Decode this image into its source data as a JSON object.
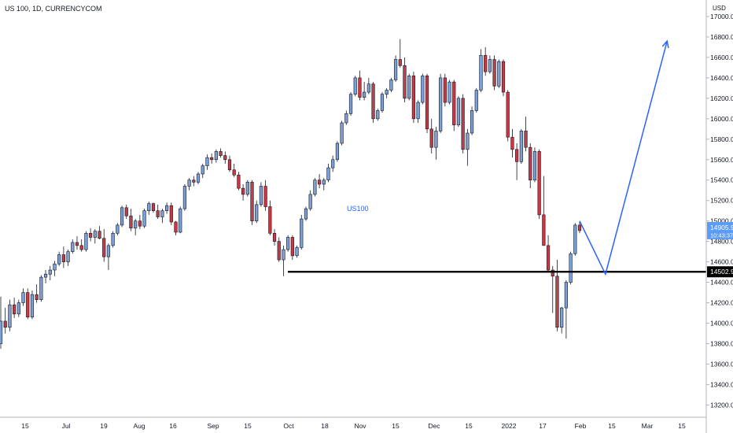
{
  "header": {
    "symbol": "US 100, 1D, CURRENCYCOM",
    "currency": "USD"
  },
  "annotation": {
    "text": "US100",
    "color": "#2962ff"
  },
  "price_tag": {
    "price": "14905.9",
    "countdown": "10:43:37",
    "color": "#5b9cf6"
  },
  "level_tag": {
    "price": "14502.9",
    "color": "#000000"
  },
  "colors": {
    "up": "#7da0d6",
    "down": "#c53a46",
    "wick": "#131722",
    "projection": "#2962ff",
    "level": "#000000",
    "axis": "#131722"
  },
  "chart_data": {
    "type": "candlestick",
    "y_ticks": [
      13200,
      13400,
      13600,
      13800,
      14000,
      14200,
      14400,
      14600,
      14800,
      15000,
      15200,
      15400,
      15600,
      15800,
      16000,
      16200,
      16400,
      16600,
      16800,
      17000
    ],
    "ylim": [
      13080,
      17100
    ],
    "x_ticks": [
      "15",
      "Jul",
      "19",
      "Aug",
      "16",
      "Sep",
      "15",
      "Oct",
      "18",
      "Nov",
      "15",
      "Dec",
      "15",
      "2022",
      "17",
      "Feb",
      "15",
      "Mar",
      "15"
    ],
    "level": 14502.9,
    "last_price": 14905.9,
    "projection_path": [
      {
        "date": "2022-02-01",
        "price": 15000
      },
      {
        "date": "2022-02-14",
        "price": 14480
      },
      {
        "date": "2022-03-17",
        "price": 16760
      }
    ],
    "candles_approx": [
      [
        13800,
        14260,
        13750,
        14020
      ],
      [
        14020,
        14150,
        13900,
        13960
      ],
      [
        13960,
        14230,
        13920,
        14180
      ],
      [
        14180,
        14250,
        14050,
        14090
      ],
      [
        14090,
        14230,
        14060,
        14200
      ],
      [
        14200,
        14340,
        14170,
        14300
      ],
      [
        14300,
        14340,
        14040,
        14060
      ],
      [
        14060,
        14320,
        14040,
        14280
      ],
      [
        14280,
        14380,
        14200,
        14230
      ],
      [
        14230,
        14470,
        14210,
        14450
      ],
      [
        14450,
        14520,
        14390,
        14480
      ],
      [
        14480,
        14560,
        14420,
        14520
      ],
      [
        14520,
        14610,
        14460,
        14580
      ],
      [
        14580,
        14700,
        14560,
        14670
      ],
      [
        14670,
        14750,
        14540,
        14600
      ],
      [
        14600,
        14720,
        14560,
        14700
      ],
      [
        14700,
        14820,
        14680,
        14790
      ],
      [
        14790,
        14850,
        14720,
        14760
      ],
      [
        14760,
        14820,
        14700,
        14720
      ],
      [
        14720,
        14900,
        14700,
        14880
      ],
      [
        14880,
        14930,
        14800,
        14840
      ],
      [
        14840,
        14920,
        14780,
        14900
      ],
      [
        14900,
        14950,
        14820,
        14830
      ],
      [
        14830,
        14920,
        14600,
        14650
      ],
      [
        14650,
        14780,
        14520,
        14760
      ],
      [
        14760,
        14900,
        14740,
        14880
      ],
      [
        14880,
        14980,
        14860,
        14960
      ],
      [
        14960,
        15150,
        14940,
        15130
      ],
      [
        15130,
        15160,
        15020,
        15050
      ],
      [
        15050,
        15120,
        14900,
        14930
      ],
      [
        14930,
        15020,
        14860,
        15000
      ],
      [
        15000,
        15060,
        14920,
        14950
      ],
      [
        14950,
        15120,
        14930,
        15100
      ],
      [
        15100,
        15190,
        15060,
        15170
      ],
      [
        15170,
        15180,
        15080,
        15100
      ],
      [
        15100,
        15160,
        15020,
        15040
      ],
      [
        15040,
        15120,
        14980,
        15100
      ],
      [
        15100,
        15180,
        15070,
        15150
      ],
      [
        15150,
        15180,
        14960,
        14990
      ],
      [
        14990,
        15000,
        14860,
        14890
      ],
      [
        14890,
        15140,
        14880,
        15120
      ],
      [
        15120,
        15360,
        15100,
        15340
      ],
      [
        15340,
        15420,
        15300,
        15400
      ],
      [
        15400,
        15440,
        15340,
        15380
      ],
      [
        15380,
        15480,
        15360,
        15460
      ],
      [
        15460,
        15560,
        15420,
        15540
      ],
      [
        15540,
        15650,
        15500,
        15620
      ],
      [
        15620,
        15660,
        15560,
        15600
      ],
      [
        15600,
        15700,
        15570,
        15680
      ],
      [
        15680,
        15710,
        15620,
        15640
      ],
      [
        15640,
        15680,
        15560,
        15600
      ],
      [
        15600,
        15640,
        15480,
        15500
      ],
      [
        15500,
        15560,
        15430,
        15450
      ],
      [
        15450,
        15480,
        15300,
        15320
      ],
      [
        15320,
        15360,
        15200,
        15260
      ],
      [
        15260,
        15400,
        15240,
        15380
      ],
      [
        15380,
        15400,
        14960,
        15000
      ],
      [
        15000,
        15200,
        14980,
        15160
      ],
      [
        15160,
        15380,
        15140,
        15340
      ],
      [
        15340,
        15400,
        15100,
        15140
      ],
      [
        15140,
        15200,
        14860,
        14880
      ],
      [
        14880,
        14920,
        14760,
        14800
      ],
      [
        14800,
        14840,
        14600,
        14620
      ],
      [
        14620,
        14760,
        14460,
        14720
      ],
      [
        14720,
        14860,
        14700,
        14840
      ],
      [
        14840,
        14860,
        14620,
        14660
      ],
      [
        14660,
        14760,
        14640,
        14740
      ],
      [
        14740,
        15060,
        14720,
        15020
      ],
      [
        15020,
        15140,
        15000,
        15120
      ],
      [
        15120,
        15300,
        15100,
        15260
      ],
      [
        15260,
        15420,
        15240,
        15400
      ],
      [
        15400,
        15460,
        15320,
        15360
      ],
      [
        15360,
        15420,
        15300,
        15400
      ],
      [
        15400,
        15560,
        15380,
        15520
      ],
      [
        15520,
        15640,
        15480,
        15600
      ],
      [
        15600,
        15780,
        15580,
        15760
      ],
      [
        15760,
        15980,
        15740,
        15960
      ],
      [
        15960,
        16080,
        15940,
        16050
      ],
      [
        16050,
        16260,
        16030,
        16240
      ],
      [
        16240,
        16420,
        16220,
        16400
      ],
      [
        16400,
        16470,
        16180,
        16210
      ],
      [
        16210,
        16360,
        16180,
        16260
      ],
      [
        16260,
        16400,
        16240,
        16340
      ],
      [
        16340,
        16360,
        15960,
        16000
      ],
      [
        16000,
        16100,
        15980,
        16080
      ],
      [
        16080,
        16260,
        16060,
        16240
      ],
      [
        16240,
        16300,
        16200,
        16280
      ],
      [
        16280,
        16400,
        16260,
        16380
      ],
      [
        16380,
        16620,
        16360,
        16580
      ],
      [
        16580,
        16780,
        16500,
        16520
      ],
      [
        16520,
        16600,
        16160,
        16200
      ],
      [
        16200,
        16440,
        16180,
        16420
      ],
      [
        16420,
        16460,
        15960,
        16000
      ],
      [
        16000,
        16180,
        15960,
        16160
      ],
      [
        16160,
        16440,
        16140,
        16420
      ],
      [
        16420,
        16440,
        15860,
        15900
      ],
      [
        15900,
        16000,
        15660,
        15720
      ],
      [
        15720,
        15920,
        15600,
        15880
      ],
      [
        15880,
        16440,
        15860,
        16400
      ],
      [
        16400,
        16440,
        16120,
        16160
      ],
      [
        16160,
        16380,
        16140,
        16360
      ],
      [
        16360,
        16380,
        15880,
        15940
      ],
      [
        15940,
        16220,
        15920,
        16200
      ],
      [
        16200,
        16240,
        15660,
        15700
      ],
      [
        15700,
        15900,
        15540,
        15860
      ],
      [
        15860,
        16120,
        15840,
        16080
      ],
      [
        16080,
        16300,
        16060,
        16280
      ],
      [
        16280,
        16680,
        16260,
        16620
      ],
      [
        16620,
        16700,
        16420,
        16460
      ],
      [
        16460,
        16620,
        16440,
        16580
      ],
      [
        16580,
        16620,
        16280,
        16320
      ],
      [
        16320,
        16580,
        16300,
        16560
      ],
      [
        16560,
        16580,
        16220,
        16260
      ],
      [
        16260,
        16280,
        15780,
        15820
      ],
      [
        15820,
        15900,
        15620,
        15700
      ],
      [
        15700,
        15760,
        15400,
        15580
      ],
      [
        15580,
        15900,
        15560,
        15880
      ],
      [
        15880,
        16020,
        15680,
        15720
      ],
      [
        15720,
        15760,
        15320,
        15400
      ],
      [
        15400,
        15720,
        15380,
        15680
      ],
      [
        15680,
        15700,
        15020,
        15060
      ],
      [
        15060,
        15440,
        14880,
        14760
      ],
      [
        14760,
        14860,
        14500,
        14520
      ],
      [
        14520,
        14560,
        14100,
        14460
      ],
      [
        14460,
        14620,
        13920,
        13960
      ],
      [
        13960,
        14160,
        13900,
        14150
      ],
      [
        14150,
        14420,
        13850,
        14400
      ],
      [
        14400,
        14700,
        14380,
        14680
      ],
      [
        14680,
        14980,
        14660,
        14960
      ],
      [
        14960,
        14990,
        14880,
        14906
      ]
    ]
  }
}
